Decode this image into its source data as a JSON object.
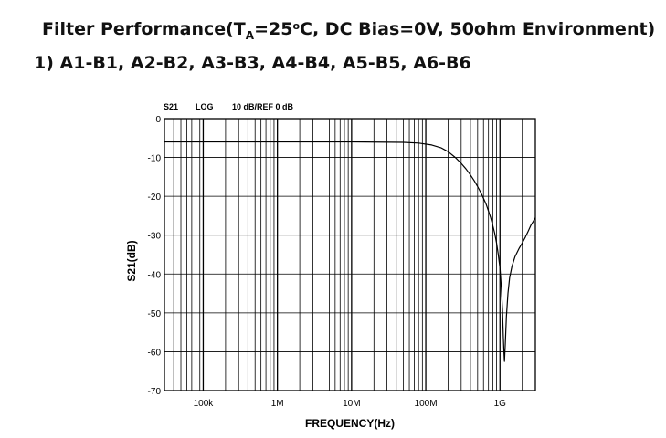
{
  "title": {
    "line1_prefix": "Filter Performance(T",
    "line1_sub": "A",
    "line1_mid": "=25",
    "line1_deg": "o",
    "line1_suffix": "C, DC Bias=0V, 50ohm Environment)",
    "line2": "1) A1-B1, A2-B2, A3-B3, A4-B4, A5-B5, A6-B6"
  },
  "chart_data": {
    "type": "line",
    "header": {
      "param": "S21",
      "scale": "LOG",
      "ref": "10 dB/REF 0 dB"
    },
    "xlabel": "FREQUENCY(Hz)",
    "ylabel": "S21(dB)",
    "x_scale": "log",
    "xlim": [
      30000,
      3000000000
    ],
    "ylim": [
      -70,
      0
    ],
    "x_ticks": [
      {
        "value": 100000,
        "label": "100k"
      },
      {
        "value": 1000000,
        "label": "1M"
      },
      {
        "value": 10000000,
        "label": "10M"
      },
      {
        "value": 100000000,
        "label": "100M"
      },
      {
        "value": 1000000000,
        "label": "1G"
      }
    ],
    "y_ticks": [
      0,
      -10,
      -20,
      -30,
      -40,
      -50,
      -60,
      -70
    ],
    "grid": true,
    "series": [
      {
        "x": [
          30000,
          1000000,
          10000000,
          50000000,
          80000000,
          120000000,
          160000000,
          200000000,
          250000000,
          300000000,
          350000000,
          400000000,
          450000000,
          500000000,
          550000000,
          600000000,
          650000000,
          700000000,
          750000000,
          800000000,
          850000000,
          900000000,
          950000000,
          1000000000,
          1040000000,
          1080000000,
          1110000000,
          1130000000,
          1150000000,
          1180000000,
          1220000000,
          1280000000,
          1350000000,
          1450000000,
          1600000000,
          1800000000,
          2000000000,
          2200000000,
          2400000000,
          2600000000,
          2800000000,
          3000000000
        ],
        "y": [
          -6.0,
          -6.0,
          -6.0,
          -6.1,
          -6.3,
          -6.8,
          -7.5,
          -8.5,
          -10.0,
          -11.5,
          -13.0,
          -14.5,
          -16.0,
          -17.5,
          -19.0,
          -20.5,
          -22.0,
          -23.8,
          -25.5,
          -27.5,
          -29.5,
          -32.0,
          -35.0,
          -38.5,
          -43.0,
          -49.0,
          -56.0,
          -60.0,
          -62.5,
          -58.0,
          -51.0,
          -45.0,
          -41.0,
          -38.0,
          -35.5,
          -33.5,
          -32.0,
          -30.5,
          -29.0,
          -27.5,
          -26.5,
          -25.5
        ]
      }
    ]
  }
}
